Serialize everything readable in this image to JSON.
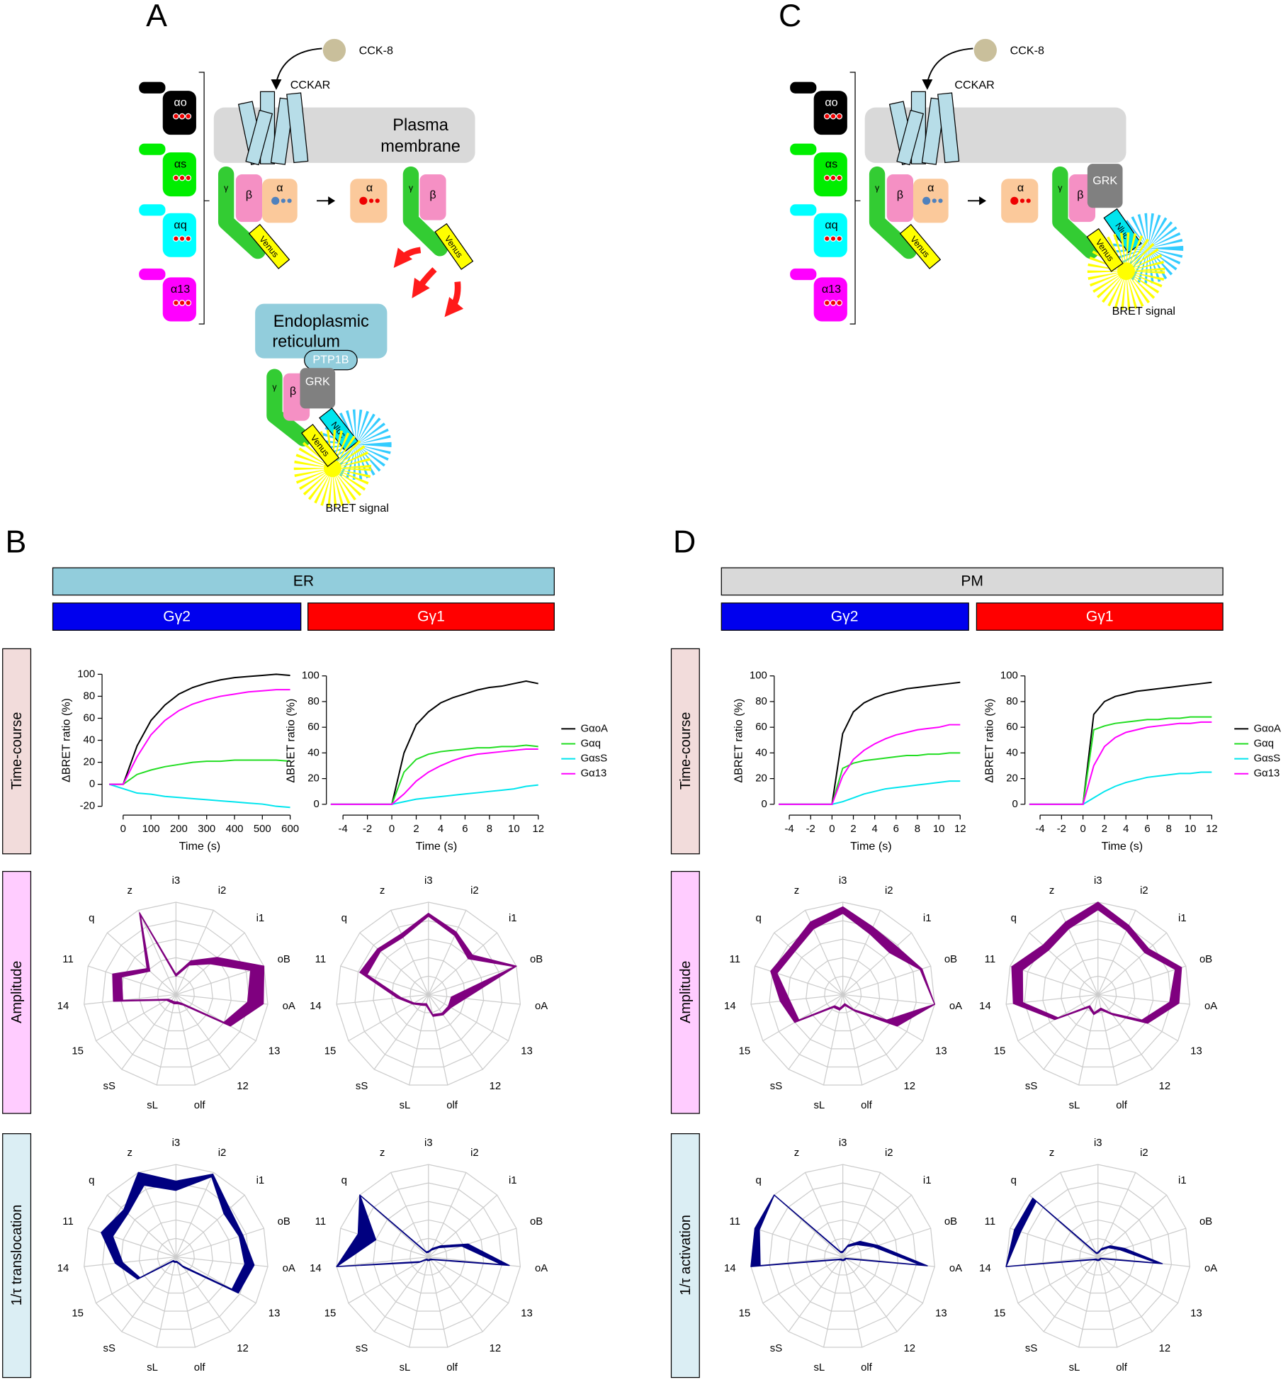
{
  "panel_a": {
    "letter": "A",
    "ligand": "CCK-8",
    "receptor": "CCKAR",
    "membrane": [
      "Plasma",
      "membrane"
    ],
    "g_alpha": [
      "αo",
      "αs",
      "αq",
      "α13"
    ],
    "heterotrimer": [
      "γ",
      "β",
      "α",
      "Venus"
    ],
    "free_alpha": "α",
    "free_dimer": [
      "γ",
      "β",
      "Venus"
    ],
    "er": [
      "Endoplasmic",
      "reticulum"
    ],
    "er_anchor": "PTP1B",
    "er_complex": [
      "γ",
      "β",
      "GRK",
      "Nluc",
      "Venus"
    ],
    "signal": "BRET signal"
  },
  "panel_c": {
    "letter": "C",
    "ligand": "CCK-8",
    "receptor": "CCKAR",
    "g_alpha": [
      "αo",
      "αs",
      "αq",
      "α13"
    ],
    "heterotrimer": [
      "γ",
      "β",
      "α",
      "Venus"
    ],
    "free_alpha": "α",
    "pm_complex": [
      "γ",
      "β",
      "GRK",
      "Nluc",
      "Venus"
    ],
    "signal": "BRET signal"
  },
  "panel_b": {
    "letter": "B",
    "compartment": "ER",
    "gamma": [
      "Gγ2",
      "Gγ1"
    ],
    "rows": [
      "Time-course",
      "Amplitude",
      "1/τ translocation"
    ]
  },
  "panel_d": {
    "letter": "D",
    "compartment": "PM",
    "gamma": [
      "Gγ2",
      "Gγ1"
    ],
    "rows": [
      "Time-course",
      "Amplitude",
      "1/τ activation"
    ]
  },
  "chart_data": [
    {
      "type": "line",
      "xlabel": "Time (s)",
      "ylabel": "ΔBRET ratio (%)",
      "x": [
        -50,
        0,
        50,
        100,
        150,
        200,
        250,
        300,
        350,
        400,
        450,
        500,
        550,
        600
      ],
      "xlim": [
        -60,
        610
      ],
      "xticks": [
        0,
        100,
        200,
        300,
        400,
        500,
        600
      ],
      "ylim": [
        -24,
        104
      ],
      "yticks": [
        -20,
        0,
        20,
        40,
        60,
        80,
        100
      ],
      "series": [
        {
          "color": "#000000",
          "values": [
            0,
            0,
            35,
            58,
            72,
            82,
            88,
            92,
            95,
            97,
            98,
            99,
            100,
            99
          ]
        },
        {
          "color": "#22dd22",
          "values": [
            0,
            0,
            9,
            13,
            16,
            18,
            20,
            21,
            21,
            22,
            22,
            22,
            22,
            21
          ]
        },
        {
          "color": "#00e5ee",
          "values": [
            0,
            -4,
            -8,
            -9,
            -11,
            -12,
            -13,
            -14,
            -15,
            -16,
            -17,
            -18,
            -20,
            -21
          ]
        },
        {
          "color": "#ff00ff",
          "values": [
            0,
            0,
            25,
            45,
            58,
            67,
            73,
            77,
            80,
            82,
            84,
            85,
            86,
            86
          ]
        }
      ]
    },
    {
      "type": "line",
      "xlabel": "Time (s)",
      "ylabel": "ΔBRET ratio (%)",
      "x": [
        -5,
        -4,
        -3,
        -2,
        -1,
        0,
        1,
        2,
        3,
        4,
        5,
        6,
        7,
        8,
        9,
        10,
        11,
        12
      ],
      "xlim": [
        -5,
        12.3
      ],
      "xticks": [
        -4,
        -2,
        0,
        2,
        4,
        6,
        8,
        10,
        12
      ],
      "ylim": [
        -5,
        104
      ],
      "yticks": [
        0,
        20,
        40,
        60,
        80,
        100
      ],
      "legend": "right",
      "series": [
        {
          "name": "GαoA",
          "color": "#000000",
          "values": [
            0,
            0,
            0,
            0,
            0,
            0,
            40,
            62,
            72,
            79,
            83,
            86,
            89,
            91,
            92,
            94,
            96,
            94
          ]
        },
        {
          "name": "Gαq",
          "color": "#22dd22",
          "values": [
            0,
            0,
            0,
            0,
            0,
            0,
            25,
            35,
            39,
            41,
            42,
            43,
            44,
            44,
            45,
            45,
            46,
            45
          ]
        },
        {
          "name": "GαsS",
          "color": "#00e5ee",
          "values": [
            0,
            0,
            0,
            0,
            0,
            0,
            2,
            4,
            5,
            6,
            7,
            8,
            9,
            10,
            11,
            12,
            14,
            15
          ]
        },
        {
          "name": "Gα13",
          "color": "#ff00ff",
          "values": [
            0,
            0,
            0,
            0,
            0,
            0,
            8,
            18,
            25,
            30,
            34,
            37,
            39,
            40,
            41,
            42,
            43,
            43
          ]
        }
      ]
    },
    {
      "type": "line",
      "xlabel": "Time (s)",
      "ylabel": "ΔBRET ratio (%)",
      "x": [
        -5,
        -4,
        -3,
        -2,
        -1,
        0,
        1,
        2,
        3,
        4,
        5,
        6,
        7,
        8,
        9,
        10,
        11,
        12
      ],
      "xlim": [
        -5,
        12.3
      ],
      "xticks": [
        -4,
        -2,
        0,
        2,
        4,
        6,
        8,
        10,
        12
      ],
      "ylim": [
        -5,
        104
      ],
      "yticks": [
        0,
        20,
        40,
        60,
        80,
        100
      ],
      "series": [
        {
          "color": "#000000",
          "values": [
            0,
            0,
            0,
            0,
            0,
            0,
            55,
            72,
            79,
            83,
            86,
            88,
            90,
            91,
            92,
            93,
            94,
            95
          ]
        },
        {
          "color": "#22dd22",
          "values": [
            0,
            0,
            0,
            0,
            0,
            0,
            28,
            32,
            34,
            35,
            36,
            37,
            38,
            38,
            39,
            39,
            40,
            40
          ]
        },
        {
          "color": "#00e5ee",
          "values": [
            0,
            0,
            0,
            0,
            0,
            0,
            2,
            5,
            8,
            10,
            12,
            13,
            14,
            15,
            16,
            17,
            18,
            18
          ]
        },
        {
          "color": "#ff00ff",
          "values": [
            0,
            0,
            0,
            0,
            0,
            0,
            22,
            35,
            42,
            47,
            51,
            54,
            56,
            58,
            59,
            60,
            62,
            62
          ]
        }
      ]
    },
    {
      "type": "line",
      "xlabel": "Time (s)",
      "ylabel": "ΔBRET ratio (%)",
      "x": [
        -5,
        -4,
        -3,
        -2,
        -1,
        0,
        1,
        2,
        3,
        4,
        5,
        6,
        7,
        8,
        9,
        10,
        11,
        12
      ],
      "xlim": [
        -5,
        12.3
      ],
      "xticks": [
        -4,
        -2,
        0,
        2,
        4,
        6,
        8,
        10,
        12
      ],
      "ylim": [
        -5,
        104
      ],
      "yticks": [
        0,
        20,
        40,
        60,
        80,
        100
      ],
      "legend": "right",
      "series": [
        {
          "name": "GαoA",
          "color": "#000000",
          "values": [
            0,
            0,
            0,
            0,
            0,
            0,
            70,
            80,
            84,
            86,
            88,
            89,
            90,
            91,
            92,
            93,
            94,
            95
          ]
        },
        {
          "name": "Gαq",
          "color": "#22dd22",
          "values": [
            0,
            0,
            0,
            0,
            0,
            0,
            58,
            61,
            63,
            64,
            65,
            66,
            66,
            67,
            67,
            68,
            68,
            68
          ]
        },
        {
          "name": "GαsS",
          "color": "#00e5ee",
          "values": [
            0,
            0,
            0,
            0,
            0,
            0,
            5,
            10,
            14,
            17,
            19,
            21,
            22,
            23,
            24,
            24,
            25,
            25
          ]
        },
        {
          "name": "Gα13",
          "color": "#ff00ff",
          "values": [
            0,
            0,
            0,
            0,
            0,
            0,
            30,
            45,
            52,
            56,
            58,
            60,
            61,
            62,
            63,
            63,
            64,
            64
          ]
        }
      ]
    },
    {
      "type": "radar",
      "categories": [
        "i3",
        "i2",
        "i1",
        "oB",
        "oA",
        "13",
        "12",
        "olf",
        "sL",
        "sS",
        "15",
        "14",
        "11",
        "q",
        "z"
      ],
      "rlim": [
        0,
        100
      ],
      "rgrid": [
        20,
        40,
        60,
        80,
        100
      ],
      "color": "#7f007f",
      "low": [
        20,
        35,
        50,
        85,
        78,
        60,
        12,
        8,
        8,
        8,
        10,
        58,
        62,
        38,
        95
      ],
      "high": [
        22,
        40,
        60,
        100,
        95,
        68,
        14,
        10,
        10,
        10,
        12,
        68,
        72,
        42,
        97
      ]
    },
    {
      "type": "radar",
      "categories": [
        "i3",
        "i2",
        "i1",
        "oB",
        "oA",
        "13",
        "12",
        "olf",
        "sL",
        "sS",
        "15",
        "14",
        "11",
        "q",
        "z"
      ],
      "rlim": [
        0,
        100
      ],
      "rgrid": [
        20,
        40,
        60,
        80,
        100
      ],
      "color": "#7f007f",
      "low": [
        85,
        70,
        58,
        98,
        25,
        25,
        25,
        22,
        10,
        12,
        18,
        30,
        70,
        70,
        68
      ],
      "high": [
        88,
        74,
        64,
        100,
        40,
        28,
        27,
        24,
        12,
        14,
        20,
        34,
        78,
        74,
        72
      ]
    },
    {
      "type": "radar",
      "categories": [
        "i3",
        "i2",
        "i1",
        "oB",
        "oA",
        "13",
        "12",
        "olf",
        "sL",
        "sS",
        "15",
        "14",
        "11",
        "q",
        "z"
      ],
      "rlim": [
        0,
        100
      ],
      "rgrid": [
        20,
        40,
        60,
        80,
        100
      ],
      "color": "#7f007f",
      "low": [
        88,
        72,
        68,
        88,
        100,
        55,
        20,
        10,
        15,
        15,
        55,
        58,
        75,
        70,
        78
      ],
      "high": [
        95,
        80,
        78,
        90,
        100,
        68,
        22,
        12,
        17,
        17,
        60,
        68,
        82,
        76,
        86
      ]
    },
    {
      "type": "radar",
      "categories": [
        "i3",
        "i2",
        "i1",
        "oB",
        "oA",
        "13",
        "12",
        "olf",
        "sL",
        "sS",
        "15",
        "14",
        "11",
        "q",
        "z"
      ],
      "rlim": [
        0,
        100
      ],
      "rgrid": [
        20,
        40,
        60,
        80,
        100
      ],
      "color": "#7f007f",
      "low": [
        92,
        76,
        68,
        88,
        78,
        55,
        25,
        15,
        20,
        15,
        50,
        82,
        86,
        72,
        78
      ],
      "high": [
        100,
        82,
        74,
        95,
        88,
        62,
        27,
        17,
        22,
        17,
        54,
        92,
        98,
        80,
        86
      ]
    },
    {
      "type": "radar",
      "categories": [
        "i3",
        "i2",
        "i1",
        "oB",
        "oA",
        "13",
        "12",
        "olf",
        "sL",
        "sS",
        "15",
        "14",
        "11",
        "q",
        "z"
      ],
      "rlim": [
        0,
        100
      ],
      "rgrid": [
        20,
        40,
        60,
        80,
        100
      ],
      "color": "#000080",
      "low": [
        72,
        95,
        70,
        72,
        75,
        70,
        12,
        5,
        5,
        5,
        45,
        58,
        72,
        70,
        85
      ],
      "high": [
        82,
        98,
        78,
        76,
        85,
        78,
        14,
        6,
        6,
        6,
        48,
        66,
        85,
        76,
        100
      ]
    },
    {
      "type": "radar",
      "categories": [
        "i3",
        "i2",
        "i1",
        "oB",
        "oA",
        "13",
        "12",
        "olf",
        "sL",
        "sS",
        "15",
        "14",
        "11",
        "q",
        "z"
      ],
      "rlim": [
        0,
        100
      ],
      "rgrid": [
        20,
        40,
        60,
        80,
        100
      ],
      "color": "#000080",
      "low": [
        5,
        8,
        15,
        38,
        80,
        5,
        3,
        3,
        3,
        3,
        10,
        100,
        60,
        100,
        5
      ],
      "high": [
        6,
        10,
        18,
        45,
        88,
        6,
        4,
        4,
        4,
        4,
        12,
        100,
        80,
        100,
        6
      ]
    },
    {
      "type": "radar",
      "categories": [
        "i3",
        "i2",
        "i1",
        "oB",
        "oA",
        "13",
        "12",
        "olf",
        "sL",
        "sS",
        "15",
        "14",
        "11",
        "q",
        "z"
      ],
      "rlim": [
        0,
        100
      ],
      "rgrid": [
        20,
        40,
        60,
        80,
        100
      ],
      "color": "#000080",
      "low": [
        5,
        12,
        20,
        35,
        85,
        3,
        3,
        3,
        3,
        3,
        5,
        90,
        95,
        100,
        5
      ],
      "high": [
        6,
        14,
        25,
        40,
        92,
        4,
        4,
        4,
        4,
        4,
        6,
        100,
        100,
        100,
        6
      ]
    },
    {
      "type": "radar",
      "categories": [
        "i3",
        "i2",
        "i1",
        "oB",
        "oA",
        "13",
        "12",
        "olf",
        "sL",
        "sS",
        "15",
        "14",
        "11",
        "q",
        "z"
      ],
      "rlim": [
        0,
        100
      ],
      "rgrid": [
        20,
        40,
        60,
        80,
        100
      ],
      "color": "#000080",
      "low": [
        4,
        8,
        15,
        25,
        65,
        3,
        3,
        3,
        3,
        3,
        5,
        100,
        88,
        90,
        4
      ],
      "high": [
        5,
        10,
        18,
        30,
        70,
        4,
        4,
        4,
        4,
        4,
        6,
        100,
        95,
        95,
        5
      ]
    }
  ]
}
